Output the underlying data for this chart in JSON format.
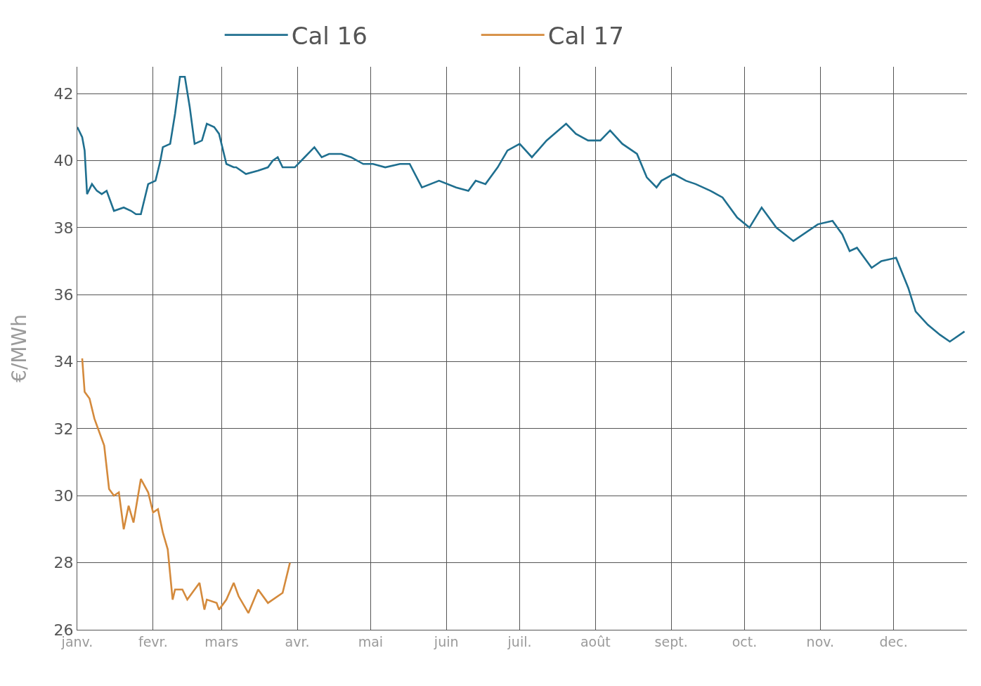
{
  "chart_data": {
    "type": "line",
    "ylabel": "€/MWh",
    "xlim": [
      "--01-01",
      "--12-31"
    ],
    "ylim": [
      26,
      42.8
    ],
    "xticks": [
      {
        "value": "--01-01",
        "label": "janv."
      },
      {
        "value": "--02-01",
        "label": "fevr."
      },
      {
        "value": "--03-01",
        "label": "mars"
      },
      {
        "value": "--04-01",
        "label": "avr."
      },
      {
        "value": "--05-01",
        "label": "mai"
      },
      {
        "value": "--06-01",
        "label": "juin"
      },
      {
        "value": "--07-01",
        "label": "juil."
      },
      {
        "value": "--08-01",
        "label": "août"
      },
      {
        "value": "--09-01",
        "label": "sept."
      },
      {
        "value": "--10-01",
        "label": "oct."
      },
      {
        "value": "--11-01",
        "label": "nov."
      },
      {
        "value": "--12-01",
        "label": "dec."
      }
    ],
    "yticks": [
      26,
      28,
      30,
      32,
      34,
      36,
      38,
      40,
      42
    ],
    "grid": true,
    "legend": "top",
    "marker": "none",
    "line_style": "solid",
    "series": [
      {
        "name": "Cal 16",
        "color": "#1f6f8f",
        "x": [
          "--01-01",
          "--01-03",
          "--01-04",
          "--01-05",
          "--01-07",
          "--01-09",
          "--01-11",
          "--01-13",
          "--01-16",
          "--01-20",
          "--01-23",
          "--01-25",
          "--01-27",
          "--01-30",
          "--02-02",
          "--02-04",
          "--02-05",
          "--02-08",
          "--02-10",
          "--02-12",
          "--02-14",
          "--02-16",
          "--02-18",
          "--02-21",
          "--02-23",
          "--02-26",
          "--02-28",
          "--03-03",
          "--03-06",
          "--03-07",
          "--03-11",
          "--03-16",
          "--03-20",
          "--03-22",
          "--03-24",
          "--03-26",
          "--03-31",
          "--04-04",
          "--04-08",
          "--04-11",
          "--04-14",
          "--04-19",
          "--04-23",
          "--04-28",
          "--05-02",
          "--05-07",
          "--05-13",
          "--05-17",
          "--05-22",
          "--05-29",
          "--06-05",
          "--06-10",
          "--06-13",
          "--06-17",
          "--06-22",
          "--06-26",
          "--07-01",
          "--07-06",
          "--07-12",
          "--07-20",
          "--07-24",
          "--07-29",
          "--08-03",
          "--08-07",
          "--08-12",
          "--08-18",
          "--08-22",
          "--08-26",
          "--08-28",
          "--09-02",
          "--09-07",
          "--09-11",
          "--09-17",
          "--09-22",
          "--09-28",
          "--10-03",
          "--10-08",
          "--10-14",
          "--10-21",
          "--10-31",
          "--11-06",
          "--11-10",
          "--11-13",
          "--11-16",
          "--11-22",
          "--11-26",
          "--12-02",
          "--12-07",
          "--12-10",
          "--12-15",
          "--12-20",
          "--12-24",
          "--12-30"
        ],
        "values": [
          41.0,
          40.7,
          40.3,
          39.0,
          39.3,
          39.1,
          39.0,
          39.1,
          38.5,
          38.6,
          38.5,
          38.4,
          38.4,
          39.3,
          39.4,
          40.0,
          40.4,
          40.5,
          41.4,
          42.5,
          42.5,
          41.6,
          40.5,
          40.6,
          41.1,
          41.0,
          40.8,
          39.9,
          39.8,
          39.8,
          39.6,
          39.7,
          39.8,
          40.0,
          40.1,
          39.8,
          39.8,
          40.1,
          40.4,
          40.1,
          40.2,
          40.2,
          40.1,
          39.9,
          39.9,
          39.8,
          39.9,
          39.9,
          39.2,
          39.4,
          39.2,
          39.1,
          39.4,
          39.3,
          39.8,
          40.3,
          40.5,
          40.1,
          40.6,
          41.1,
          40.8,
          40.6,
          40.6,
          40.9,
          40.5,
          40.2,
          39.5,
          39.2,
          39.4,
          39.6,
          39.4,
          39.3,
          39.1,
          38.9,
          38.3,
          38.0,
          38.6,
          38.0,
          37.6,
          38.1,
          38.2,
          37.8,
          37.3,
          37.4,
          36.8,
          37.0,
          37.1,
          36.2,
          35.5,
          35.1,
          34.8,
          34.6,
          34.9
        ]
      },
      {
        "name": "Cal 17",
        "color": "#d48a3c",
        "x": [
          "--01-03",
          "--01-04",
          "--01-06",
          "--01-08",
          "--01-10",
          "--01-12",
          "--01-14",
          "--01-16",
          "--01-18",
          "--01-20",
          "--01-22",
          "--01-24",
          "--01-27",
          "--01-30",
          "--02-01",
          "--02-03",
          "--02-05",
          "--02-07",
          "--02-09",
          "--02-10",
          "--02-13",
          "--02-15",
          "--02-17",
          "--02-20",
          "--02-22",
          "--02-23",
          "--02-27",
          "--02-28",
          "--03-03",
          "--03-06",
          "--03-08",
          "--03-12",
          "--03-16",
          "--03-20",
          "--03-26",
          "--03-29"
        ],
        "values": [
          34.1,
          33.1,
          32.9,
          32.3,
          31.9,
          31.5,
          30.2,
          30.0,
          30.1,
          29.0,
          29.7,
          29.2,
          30.5,
          30.1,
          29.5,
          29.6,
          28.9,
          28.4,
          26.9,
          27.2,
          27.2,
          26.9,
          27.1,
          27.4,
          26.6,
          26.9,
          26.8,
          26.6,
          26.9,
          27.4,
          27.0,
          26.5,
          27.2,
          26.8,
          27.1,
          28.0
        ]
      }
    ]
  }
}
